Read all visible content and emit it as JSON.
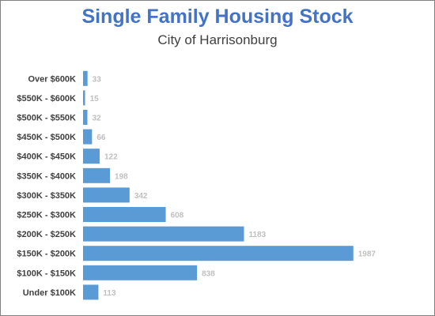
{
  "chart_data": {
    "type": "bar",
    "orientation": "horizontal",
    "title": "Single Family Housing Stock",
    "subtitle": "City of Harrisonburg",
    "categories": [
      "Over $600K",
      "$550K - $600K",
      "$500K - $550K",
      "$450K - $500K",
      "$400K - $450K",
      "$350K - $400K",
      "$300K - $350K",
      "$250K - $300K",
      "$200K - $250K",
      "$150K - $200K",
      "$100K - $150K",
      "Under $100K"
    ],
    "values": [
      33,
      15,
      32,
      66,
      122,
      198,
      342,
      608,
      1183,
      1987,
      838,
      113
    ],
    "xlim": [
      0,
      2000
    ],
    "grid": false,
    "legend": "none",
    "data_labels": true,
    "bar_color": "#5b9bd5",
    "label_color": "#bfbfbf",
    "title_color": "#4472c4"
  }
}
